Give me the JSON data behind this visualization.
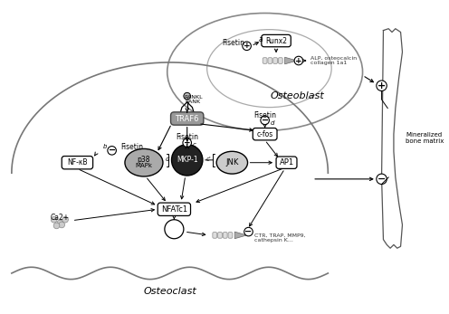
{
  "title_osteoblast": "Osteoblast",
  "title_osteoclast": "Osteoclast",
  "bone_label": "Mineralized\nbone matrix",
  "alp_label": "ALP, osteocalcin\ncollagen 1a1",
  "ctr_label": "CTR, TRAP, MMP9,\ncathepsin K...",
  "minus_char": "−",
  "plus_char": "+",
  "figsize": [
    4.96,
    3.47
  ],
  "dpi": 100
}
